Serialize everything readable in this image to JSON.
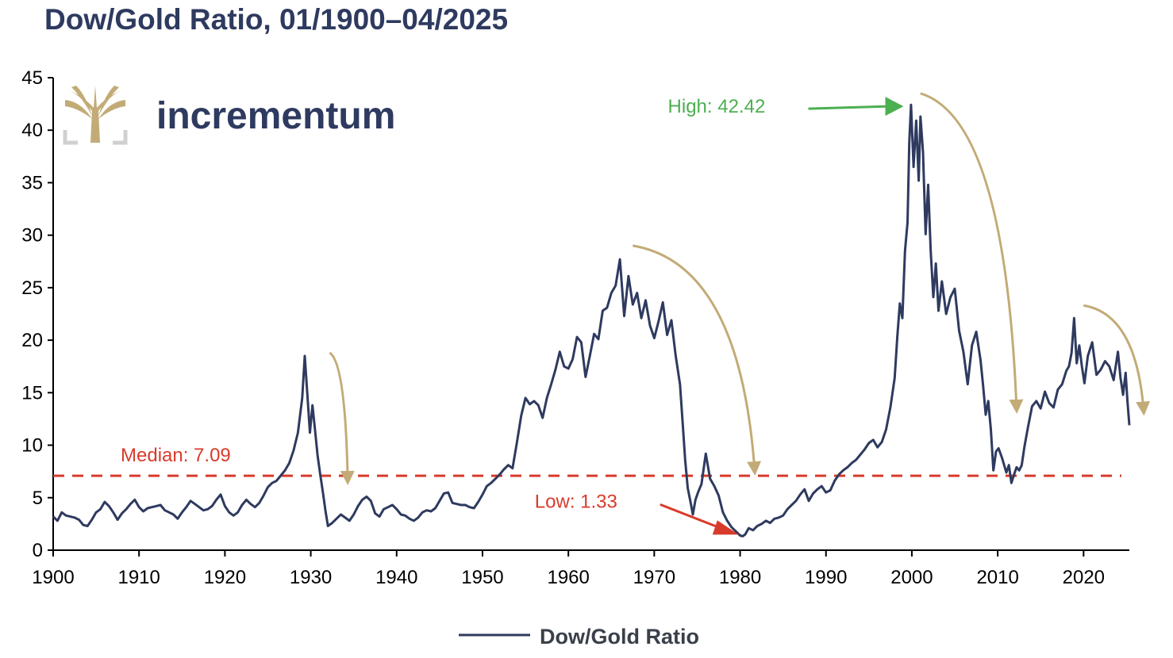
{
  "colors": {
    "title": "#2e3a5f",
    "series": "#2e3a5f",
    "median": "#d93b2b",
    "high": "#4caf50",
    "low": "#d93b2b",
    "trend_arrow": "#c2ab76",
    "logo_gold": "#c2ab76",
    "logo_grey": "#d0d0d0",
    "axis": "#000000"
  },
  "brand": {
    "name": "incrementum",
    "logo_icon": "tree-icon"
  },
  "chart_data": {
    "type": "line",
    "title": "Dow/Gold Ratio, 01/1900–04/2025",
    "xlabel": "",
    "ylabel": "",
    "xlim": [
      1900,
      2025.33
    ],
    "ylim": [
      0,
      45
    ],
    "x_ticks": [
      1900,
      1910,
      1920,
      1930,
      1940,
      1950,
      1960,
      1970,
      1980,
      1990,
      2000,
      2010,
      2020
    ],
    "y_ticks": [
      0,
      5,
      10,
      15,
      20,
      25,
      30,
      35,
      40,
      45
    ],
    "grid": false,
    "legend_position": "bottom-center",
    "series": [
      {
        "name": "Dow/Gold Ratio",
        "x": [
          1900.0,
          1900.5,
          1901.0,
          1901.5,
          1902.0,
          1902.5,
          1903.0,
          1903.5,
          1904.0,
          1904.5,
          1905.0,
          1905.5,
          1906.0,
          1906.5,
          1907.0,
          1907.5,
          1908.0,
          1908.5,
          1909.0,
          1909.5,
          1910.0,
          1910.5,
          1911.0,
          1911.5,
          1912.0,
          1912.5,
          1913.0,
          1913.5,
          1914.0,
          1914.5,
          1915.0,
          1915.5,
          1916.0,
          1916.5,
          1917.0,
          1917.5,
          1918.0,
          1918.5,
          1919.0,
          1919.5,
          1920.0,
          1920.5,
          1921.0,
          1921.5,
          1922.0,
          1922.5,
          1923.0,
          1923.5,
          1924.0,
          1924.5,
          1925.0,
          1925.5,
          1926.0,
          1926.5,
          1927.0,
          1927.5,
          1928.0,
          1928.5,
          1929.0,
          1929.3,
          1929.6,
          1929.9,
          1930.2,
          1930.5,
          1930.8,
          1931.1,
          1931.4,
          1931.7,
          1932.0,
          1932.5,
          1933.0,
          1933.5,
          1934.0,
          1934.5,
          1935.0,
          1935.5,
          1936.0,
          1936.5,
          1937.0,
          1937.5,
          1938.0,
          1938.5,
          1939.0,
          1939.5,
          1940.0,
          1940.5,
          1941.0,
          1941.5,
          1942.0,
          1942.5,
          1943.0,
          1943.5,
          1944.0,
          1944.5,
          1945.0,
          1945.5,
          1946.0,
          1946.5,
          1947.0,
          1947.5,
          1948.0,
          1948.5,
          1949.0,
          1949.5,
          1950.0,
          1950.5,
          1951.0,
          1951.5,
          1952.0,
          1952.5,
          1953.0,
          1953.5,
          1954.0,
          1954.5,
          1955.0,
          1955.5,
          1956.0,
          1956.5,
          1957.0,
          1957.5,
          1958.0,
          1958.5,
          1959.0,
          1959.5,
          1960.0,
          1960.5,
          1961.0,
          1961.5,
          1962.0,
          1962.5,
          1963.0,
          1963.5,
          1964.0,
          1964.5,
          1965.0,
          1965.5,
          1966.0,
          1966.5,
          1967.0,
          1967.5,
          1968.0,
          1968.5,
          1969.0,
          1969.5,
          1970.0,
          1970.5,
          1971.0,
          1971.5,
          1972.0,
          1972.5,
          1973.0,
          1973.3,
          1973.6,
          1973.9,
          1974.2,
          1974.5,
          1974.8,
          1975.1,
          1975.5,
          1976.0,
          1976.5,
          1977.0,
          1977.5,
          1978.0,
          1978.5,
          1979.0,
          1979.5,
          1980.0,
          1980.3,
          1980.6,
          1981.0,
          1981.5,
          1982.0,
          1982.5,
          1983.0,
          1983.5,
          1984.0,
          1984.5,
          1985.0,
          1985.5,
          1986.0,
          1986.5,
          1987.0,
          1987.5,
          1988.0,
          1988.5,
          1989.0,
          1989.5,
          1990.0,
          1990.5,
          1991.0,
          1991.5,
          1992.0,
          1992.5,
          1993.0,
          1993.5,
          1994.0,
          1994.5,
          1995.0,
          1995.5,
          1996.0,
          1996.5,
          1997.0,
          1997.5,
          1998.0,
          1998.3,
          1998.6,
          1998.9,
          1999.2,
          1999.5,
          1999.7,
          1999.9,
          2000.2,
          2000.5,
          2000.8,
          2001.0,
          2001.3,
          2001.6,
          2001.9,
          2002.2,
          2002.5,
          2002.8,
          2003.1,
          2003.5,
          2004.0,
          2004.5,
          2005.0,
          2005.5,
          2006.0,
          2006.5,
          2007.0,
          2007.5,
          2008.0,
          2008.3,
          2008.6,
          2008.9,
          2009.2,
          2009.5,
          2009.8,
          2010.1,
          2010.5,
          2011.0,
          2011.3,
          2011.6,
          2011.9,
          2012.2,
          2012.5,
          2012.8,
          2013.1,
          2013.5,
          2014.0,
          2014.5,
          2015.0,
          2015.5,
          2016.0,
          2016.5,
          2017.0,
          2017.5,
          2018.0,
          2018.3,
          2018.6,
          2018.9,
          2019.2,
          2019.5,
          2019.8,
          2020.1,
          2020.5,
          2021.0,
          2021.5,
          2022.0,
          2022.5,
          2023.0,
          2023.5,
          2024.0,
          2024.3,
          2024.6,
          2024.9,
          2025.1,
          2025.33
        ],
        "y": [
          3.2,
          2.8,
          3.6,
          3.3,
          3.2,
          3.1,
          2.9,
          2.4,
          2.3,
          2.9,
          3.6,
          3.9,
          4.6,
          4.2,
          3.6,
          2.9,
          3.5,
          3.9,
          4.4,
          4.8,
          4.1,
          3.7,
          4.0,
          4.1,
          4.2,
          4.3,
          3.8,
          3.6,
          3.4,
          3.0,
          3.6,
          4.1,
          4.7,
          4.4,
          4.1,
          3.8,
          3.9,
          4.2,
          4.8,
          5.3,
          4.2,
          3.6,
          3.3,
          3.6,
          4.3,
          4.8,
          4.4,
          4.1,
          4.5,
          5.2,
          6.0,
          6.4,
          6.6,
          7.1,
          7.6,
          8.3,
          9.5,
          11.2,
          14.5,
          18.5,
          14.8,
          11.2,
          13.8,
          11.4,
          9.0,
          7.2,
          5.6,
          3.8,
          2.3,
          2.6,
          3.0,
          3.4,
          3.1,
          2.8,
          3.4,
          4.2,
          4.8,
          5.1,
          4.7,
          3.5,
          3.2,
          3.9,
          4.1,
          4.3,
          3.9,
          3.4,
          3.3,
          3.0,
          2.8,
          3.1,
          3.6,
          3.8,
          3.7,
          4.0,
          4.7,
          5.4,
          5.5,
          4.5,
          4.4,
          4.3,
          4.3,
          4.1,
          4.0,
          4.6,
          5.3,
          6.1,
          6.4,
          6.8,
          7.2,
          7.7,
          8.1,
          7.8,
          10.2,
          12.8,
          14.5,
          13.9,
          14.2,
          13.8,
          12.6,
          14.5,
          15.8,
          17.2,
          18.9,
          17.5,
          17.3,
          18.2,
          20.3,
          19.8,
          16.5,
          18.5,
          20.6,
          20.1,
          22.8,
          23.1,
          24.5,
          25.2,
          27.7,
          22.3,
          26.1,
          23.4,
          24.5,
          22.1,
          23.8,
          21.4,
          20.2,
          21.8,
          23.6,
          20.5,
          21.9,
          18.5,
          15.8,
          12.2,
          8.6,
          5.9,
          4.7,
          3.4,
          4.8,
          5.5,
          6.3,
          9.2,
          6.8,
          6.1,
          5.2,
          3.6,
          2.8,
          2.2,
          1.8,
          1.4,
          1.33,
          1.5,
          2.1,
          1.9,
          2.3,
          2.5,
          2.8,
          2.6,
          3.0,
          3.1,
          3.3,
          3.9,
          4.3,
          4.7,
          5.3,
          5.8,
          4.7,
          5.4,
          5.8,
          6.1,
          5.5,
          5.7,
          6.6,
          7.2,
          7.6,
          7.9,
          8.3,
          8.6,
          9.1,
          9.6,
          10.2,
          10.5,
          9.8,
          10.3,
          11.5,
          13.6,
          16.4,
          20.3,
          23.5,
          22.1,
          28.5,
          31.2,
          38.8,
          42.42,
          36.5,
          40.9,
          35.2,
          41.3,
          37.9,
          30.1,
          34.8,
          28.5,
          24.1,
          27.3,
          22.8,
          25.6,
          22.5,
          24.1,
          24.9,
          20.9,
          18.9,
          15.8,
          19.5,
          20.8,
          18.1,
          15.7,
          12.9,
          14.2,
          11.5,
          7.6,
          9.4,
          9.7,
          8.8,
          7.4,
          8.1,
          6.4,
          7.2,
          7.9,
          7.6,
          8.1,
          9.8,
          11.6,
          13.7,
          14.2,
          13.5,
          15.1,
          14.0,
          13.6,
          15.3,
          15.8,
          17.1,
          17.5,
          18.8,
          22.1,
          17.8,
          19.5,
          17.5,
          15.9,
          18.5,
          19.8,
          16.7,
          17.2,
          18.0,
          17.5,
          16.2,
          18.9,
          16.4,
          14.8,
          16.9,
          14.3,
          11.9
        ]
      }
    ],
    "reference_lines": [
      {
        "label": "Median: 7.09",
        "y": 7.09,
        "style": "dashed"
      }
    ],
    "annotations": [
      {
        "label": "High: 42.42",
        "x": 1999.5,
        "y": 42.42
      },
      {
        "label": "Low: 1.33",
        "x": 1980.3,
        "y": 1.33
      }
    ],
    "trend_arrows": [
      {
        "from": [
          1932.2,
          18.8
        ],
        "to": [
          1934.3,
          6.6
        ]
      },
      {
        "from": [
          1967.5,
          29.0
        ],
        "to": [
          1981.7,
          7.5
        ]
      },
      {
        "from": [
          2001.0,
          43.5
        ],
        "to": [
          2012.2,
          13.4
        ]
      },
      {
        "from": [
          2020.0,
          23.3
        ],
        "to": [
          2027.0,
          13.2
        ]
      }
    ]
  }
}
